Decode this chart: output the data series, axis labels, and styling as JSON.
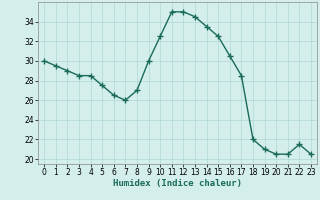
{
  "x": [
    0,
    1,
    2,
    3,
    4,
    5,
    6,
    7,
    8,
    9,
    10,
    11,
    12,
    13,
    14,
    15,
    16,
    17,
    18,
    19,
    20,
    21,
    22,
    23
  ],
  "y": [
    30.0,
    29.5,
    29.0,
    28.5,
    28.5,
    27.5,
    26.5,
    26.0,
    27.0,
    30.0,
    32.5,
    35.0,
    35.0,
    34.5,
    33.5,
    32.5,
    30.5,
    28.5,
    22.0,
    21.0,
    20.5,
    20.5,
    21.5,
    20.5
  ],
  "line_color": "#1a6b5a",
  "marker": "+",
  "markersize": 4,
  "linewidth": 1.0,
  "xlabel": "Humidex (Indice chaleur)",
  "xlim": [
    -0.5,
    23.5
  ],
  "ylim": [
    19.5,
    36.0
  ],
  "yticks": [
    20,
    22,
    24,
    26,
    28,
    30,
    32,
    34
  ],
  "xticks": [
    0,
    1,
    2,
    3,
    4,
    5,
    6,
    7,
    8,
    9,
    10,
    11,
    12,
    13,
    14,
    15,
    16,
    17,
    18,
    19,
    20,
    21,
    22,
    23
  ],
  "bg_color": "#d4eeec",
  "grid_color": "#b0d8d4",
  "label_fontsize": 6.5,
  "tick_fontsize": 5.5
}
